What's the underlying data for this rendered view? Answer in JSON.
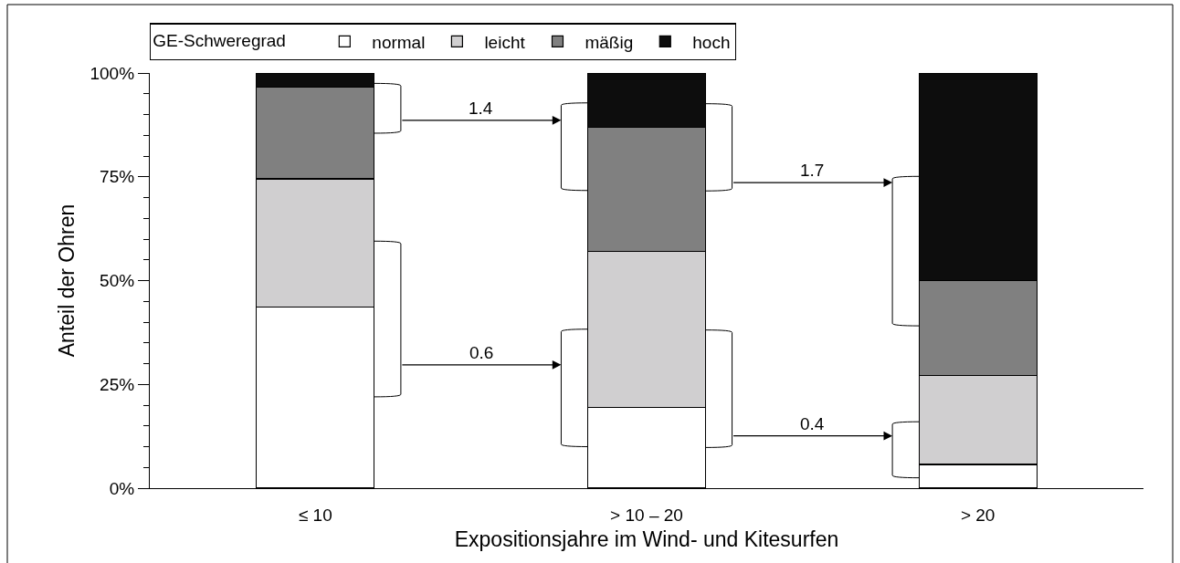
{
  "chart_data": {
    "type": "bar",
    "stacked": true,
    "xlabel": "Expositionsjahre im Wind- und Kitesurfen",
    "ylabel": "Anteil der Ohren",
    "legend_title": "GE-Schweregrad",
    "categories": [
      "≤ 10",
      "> 10 – 20",
      "> 20"
    ],
    "series": [
      {
        "name": "normal",
        "color": "#ffffff",
        "values": [
          43.6,
          19.4,
          5.7
        ]
      },
      {
        "name": "leicht",
        "color": "#d0cfd0",
        "values": [
          30.9,
          37.7,
          21.4
        ]
      },
      {
        "name": "mäßig",
        "color": "#808080",
        "values": [
          22.1,
          29.9,
          22.9
        ]
      },
      {
        "name": "hoch",
        "color": "#0d0d0d",
        "values": [
          3.4,
          13.0,
          50.0
        ]
      }
    ],
    "ylim": [
      0,
      100
    ],
    "yticks": [
      {
        "value": 0,
        "label": "0%"
      },
      {
        "value": 5,
        "label": null
      },
      {
        "value": 10,
        "label": null
      },
      {
        "value": 15,
        "label": null
      },
      {
        "value": 20,
        "label": null
      },
      {
        "value": 25,
        "label": "25%"
      },
      {
        "value": 30,
        "label": null
      },
      {
        "value": 35,
        "label": null
      },
      {
        "value": 40,
        "label": null
      },
      {
        "value": 45,
        "label": null
      },
      {
        "value": 50,
        "label": "50%"
      },
      {
        "value": 55,
        "label": null
      },
      {
        "value": 60,
        "label": null
      },
      {
        "value": 65,
        "label": null
      },
      {
        "value": 70,
        "label": null
      },
      {
        "value": 75,
        "label": "75%"
      },
      {
        "value": 80,
        "label": null
      },
      {
        "value": 85,
        "label": null
      },
      {
        "value": 90,
        "label": null
      },
      {
        "value": 95,
        "label": null
      },
      {
        "value": 100,
        "label": "100%"
      }
    ],
    "legend": "top",
    "annotations": [
      "1.4",
      "0.6",
      "1.7",
      "0.4"
    ]
  }
}
